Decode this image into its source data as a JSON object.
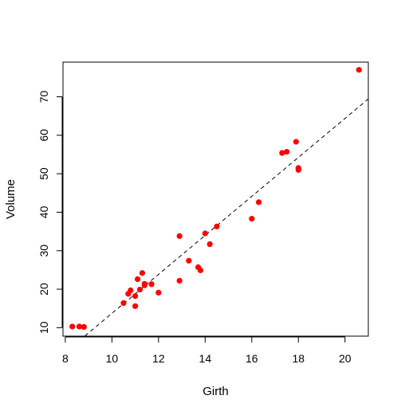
{
  "chart_data": {
    "type": "scatter",
    "title": "",
    "xlabel": "Girth",
    "ylabel": "Volume",
    "xlim": [
      7.9,
      21.0
    ],
    "ylim": [
      7.8,
      79.0
    ],
    "x_ticks": [
      8,
      10,
      12,
      14,
      16,
      18,
      20
    ],
    "y_ticks": [
      10,
      20,
      30,
      40,
      50,
      60,
      70
    ],
    "grid": false,
    "point_color": "#ff0000",
    "x": [
      8.3,
      8.6,
      8.8,
      10.5,
      10.7,
      10.8,
      11.0,
      11.0,
      11.1,
      11.2,
      11.3,
      11.4,
      11.4,
      11.7,
      12.0,
      12.9,
      12.9,
      13.3,
      13.7,
      13.8,
      14.0,
      14.2,
      14.5,
      16.0,
      16.3,
      17.3,
      17.5,
      17.9,
      18.0,
      18.0,
      20.6
    ],
    "y": [
      10.3,
      10.3,
      10.2,
      16.4,
      18.8,
      19.7,
      15.6,
      18.2,
      22.6,
      19.9,
      24.2,
      21.0,
      21.4,
      21.3,
      19.1,
      22.2,
      33.8,
      27.4,
      25.7,
      24.9,
      34.5,
      31.7,
      36.3,
      38.3,
      42.6,
      55.4,
      55.7,
      58.3,
      51.5,
      51.0,
      77.0
    ],
    "fit_line": {
      "style": "dashed",
      "color": "#000000",
      "intercept": -36.94,
      "slope": 5.066
    }
  }
}
